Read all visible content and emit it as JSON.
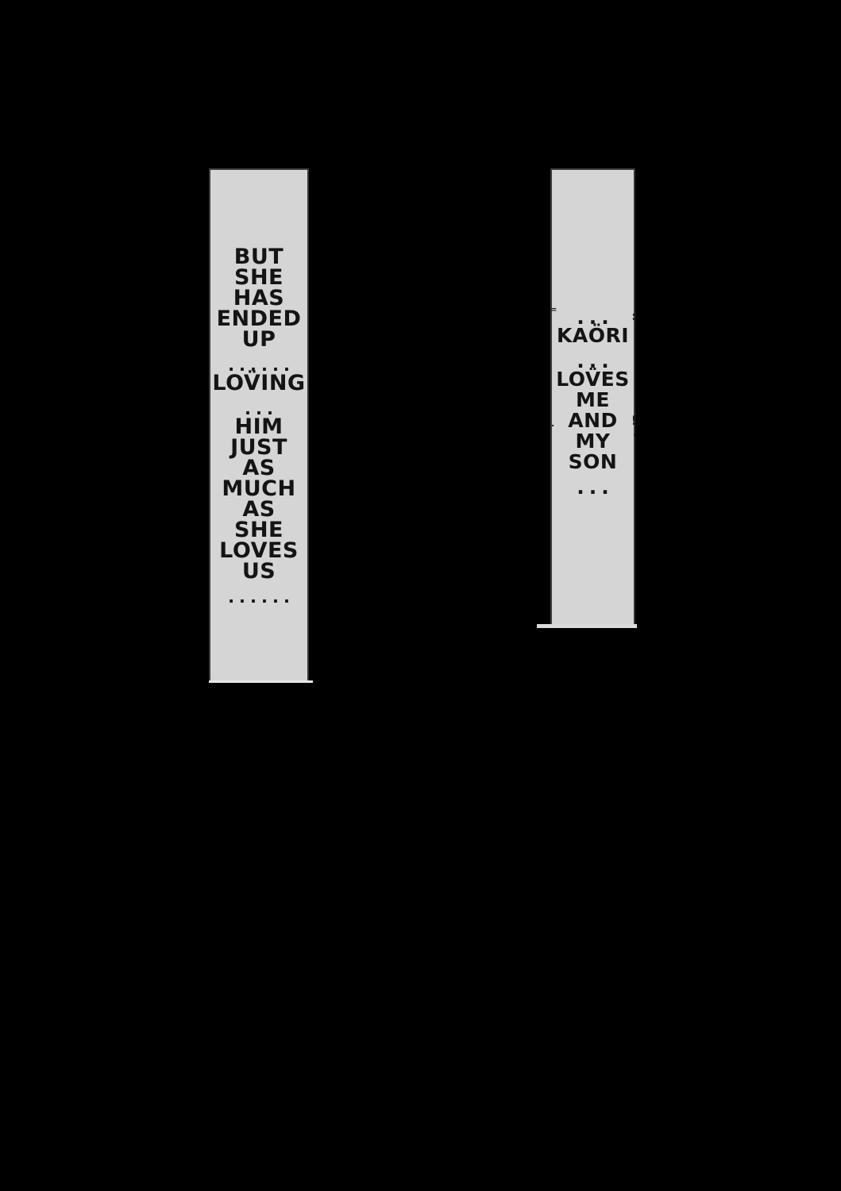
{
  "page": {
    "type": "manga-page-scan",
    "background_color": "#000000",
    "bubble_fill_color": "#d5d5d5",
    "bubble_border_color": "#3c3c3c",
    "text_color": "#141414"
  },
  "bubbles": {
    "left": {
      "lines": [
        "BUT",
        "SHE",
        "HAS",
        "ENDED",
        "UP",
        "......",
        "LOV̈ING",
        "...",
        "HIM",
        "JUST",
        "AS",
        "MUCH",
        "AS",
        "SHE",
        "LOVES",
        "US",
        "......"
      ]
    },
    "right": {
      "lines": [
        "...",
        "KAÖRI",
        "...",
        "LOV̈ES",
        "ME",
        "AND",
        "MY",
        "SON",
        "..."
      ],
      "edge_fragments": {
        "left_top": "=",
        "left_mid": ".",
        "right_top": ":",
        "right_mid": "!",
        "right_low": "'"
      }
    }
  }
}
